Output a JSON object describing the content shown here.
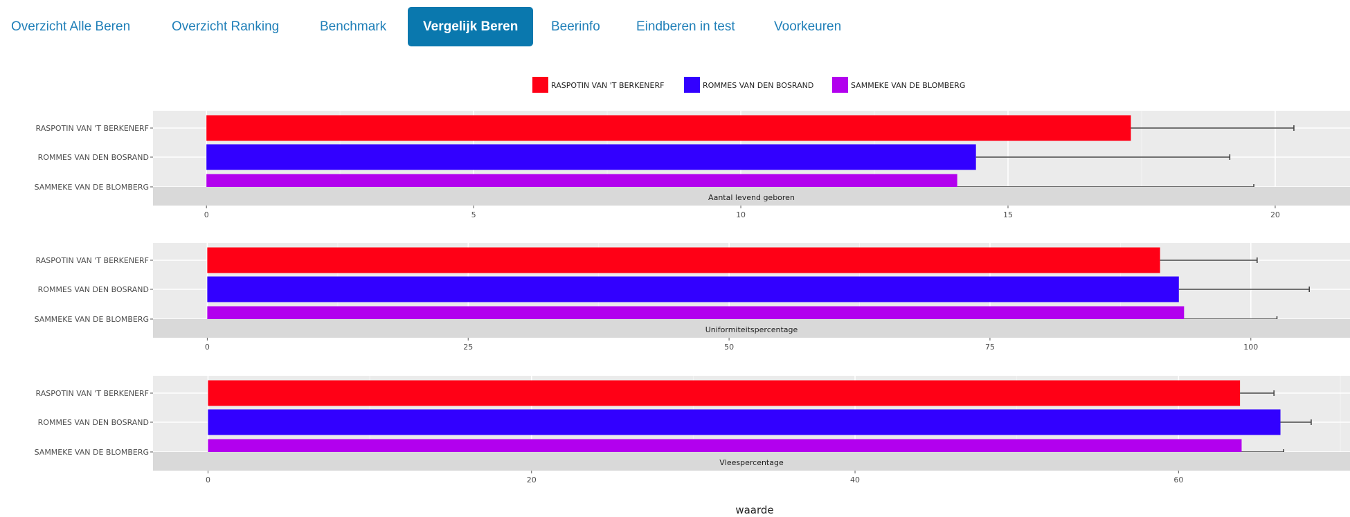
{
  "nav": {
    "tabs": [
      {
        "label": "Overzicht Alle Beren",
        "active": false
      },
      {
        "label": "Overzicht Ranking",
        "active": false
      },
      {
        "label": "Benchmark",
        "active": false
      },
      {
        "label": "Vergelijk Beren",
        "active": true
      },
      {
        "label": "Beerinfo",
        "active": false
      },
      {
        "label": "Eindberen in test",
        "active": false
      },
      {
        "label": "Voorkeuren",
        "active": false
      }
    ]
  },
  "chart_data": {
    "type": "bar",
    "orientation": "horizontal",
    "xlabel": "waarde",
    "legend": {
      "placement": "top",
      "entries": [
        {
          "name": "RASPOTIN VAN 'T BERKENERF",
          "color": "#ff0016"
        },
        {
          "name": "ROMMES VAN DEN BOSRAND",
          "color": "#3200ff"
        },
        {
          "name": "SAMMEKE VAN DE BLOMBERG",
          "color": "#b200ee"
        }
      ]
    },
    "categories": [
      "RASPOTIN VAN 'T BERKENERF",
      "ROMMES VAN DEN BOSRAND",
      "SAMMEKE VAN DE BLOMBERG"
    ],
    "grid": true,
    "panels": [
      {
        "strip": "Aantal levend geboren",
        "xlim": [
          -1,
          21.4
        ],
        "ticks": [
          0,
          5,
          10,
          15,
          20
        ],
        "values": [
          17.3,
          14.4,
          14.05
        ],
        "error_upper": [
          20.35,
          19.15,
          19.6
        ]
      },
      {
        "strip": "Uniformiteitspercentage",
        "xlim": [
          -5.2,
          109.5
        ],
        "ticks": [
          0,
          25,
          50,
          75,
          100
        ],
        "values": [
          91.3,
          93.1,
          93.6
        ],
        "error_upper": [
          100.6,
          105.6,
          102.5
        ]
      },
      {
        "strip": "Vleespercentage",
        "xlim": [
          -3.4,
          70.6
        ],
        "ticks": [
          0,
          20,
          40,
          60
        ],
        "values": [
          63.8,
          66.3,
          63.9
        ],
        "error_upper": [
          65.9,
          68.2,
          66.5
        ]
      }
    ]
  }
}
